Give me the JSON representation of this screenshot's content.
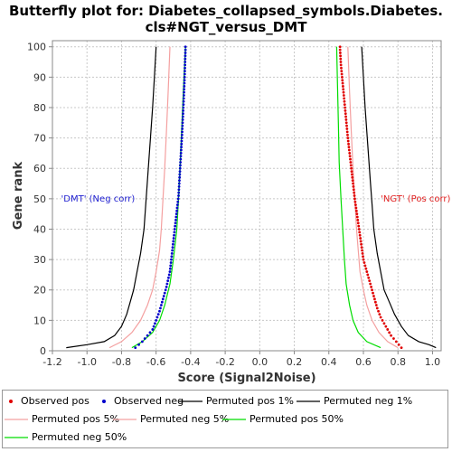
{
  "title_line1": "Butterfly plot for: Diabetes_collapsed_symbols.Diabetes.",
  "title_line2": "cls#NGT_versus_DMT",
  "chart_data": {
    "type": "line",
    "xlabel": "Score (Signal2Noise)",
    "ylabel": "Gene rank",
    "xlim": [
      -1.2,
      1.05
    ],
    "ylim": [
      0,
      102
    ],
    "x_ticks": [
      "-1.2",
      "-1.0",
      "-0.8",
      "-0.6",
      "-0.4",
      "-0.2",
      "0.0",
      "0.2",
      "0.4",
      "0.6",
      "0.8",
      "1.0"
    ],
    "y_ticks": [
      "0",
      "10",
      "20",
      "30",
      "40",
      "50",
      "60",
      "70",
      "80",
      "90",
      "100"
    ],
    "grid": true,
    "annotations": [
      {
        "text": "'DMT' (Neg corr)",
        "color": "#2020d0",
        "x": -1.15,
        "y": 49
      },
      {
        "text": "'NGT' (Pos corr)",
        "color": "#e02020",
        "x": 0.7,
        "y": 49
      }
    ],
    "series": [
      {
        "name": "Observed pos",
        "style": "dots",
        "color": "#e00000",
        "x": [
          0.82,
          0.79,
          0.76,
          0.73,
          0.7,
          0.68,
          0.66,
          0.64,
          0.62,
          0.6,
          0.59,
          0.58,
          0.57,
          0.56,
          0.55,
          0.54,
          0.53,
          0.52,
          0.51,
          0.5,
          0.49,
          0.48,
          0.47,
          0.465
        ],
        "y": [
          1,
          3,
          5,
          8,
          11,
          14,
          18,
          22,
          26,
          30,
          34,
          38,
          42,
          46,
          50,
          55,
          60,
          65,
          70,
          76,
          82,
          88,
          94,
          99
        ]
      },
      {
        "name": "Observed neg",
        "style": "dots",
        "color": "#0000cc",
        "x": [
          -0.72,
          -0.68,
          -0.65,
          -0.62,
          -0.6,
          -0.58,
          -0.56,
          -0.54,
          -0.52,
          -0.51,
          -0.5,
          -0.49,
          -0.48,
          -0.47,
          -0.465,
          -0.46,
          -0.455,
          -0.45,
          -0.445,
          -0.44,
          -0.435,
          -0.43
        ],
        "y": [
          1,
          3,
          5,
          7,
          10,
          13,
          17,
          21,
          26,
          31,
          36,
          41,
          46,
          51,
          56,
          61,
          66,
          71,
          77,
          83,
          90,
          99
        ]
      },
      {
        "name": "Permuted pos 1%",
        "style": "line",
        "color": "#000000",
        "x": [
          1.02,
          0.98,
          0.92,
          0.86,
          0.82,
          0.78,
          0.75,
          0.72,
          0.7,
          0.68,
          0.66,
          0.65,
          0.64,
          0.63,
          0.62,
          0.61,
          0.6,
          0.59
        ],
        "y": [
          1,
          2,
          3,
          5,
          8,
          12,
          16,
          20,
          26,
          32,
          40,
          48,
          56,
          64,
          72,
          80,
          90,
          100
        ]
      },
      {
        "name": "Permuted neg 1%",
        "style": "line",
        "color": "#000000",
        "x": [
          -1.12,
          -1.0,
          -0.9,
          -0.84,
          -0.8,
          -0.77,
          -0.75,
          -0.73,
          -0.71,
          -0.69,
          -0.67,
          -0.66,
          -0.65,
          -0.64,
          -0.63,
          -0.62,
          -0.61,
          -0.6
        ],
        "y": [
          1,
          2,
          3,
          5,
          8,
          12,
          16,
          20,
          26,
          32,
          40,
          48,
          56,
          64,
          72,
          80,
          90,
          100
        ]
      },
      {
        "name": "Permuted pos 5%",
        "style": "line",
        "color": "#f4a0a0",
        "x": [
          0.8,
          0.74,
          0.69,
          0.65,
          0.62,
          0.6,
          0.58,
          0.57,
          0.56,
          0.55,
          0.54,
          0.53,
          0.52,
          0.51
        ],
        "y": [
          1,
          3,
          6,
          10,
          15,
          20,
          26,
          33,
          40,
          50,
          60,
          72,
          85,
          100
        ]
      },
      {
        "name": "Permuted neg 5%",
        "style": "line",
        "color": "#f4a0a0",
        "x": [
          -0.87,
          -0.8,
          -0.74,
          -0.69,
          -0.65,
          -0.62,
          -0.6,
          -0.58,
          -0.57,
          -0.56,
          -0.55,
          -0.54,
          -0.53,
          -0.52
        ],
        "y": [
          1,
          3,
          6,
          10,
          15,
          20,
          26,
          33,
          40,
          50,
          60,
          72,
          85,
          100
        ]
      },
      {
        "name": "Permuted pos 50%",
        "style": "line",
        "color": "#00dd00",
        "x": [
          0.7,
          0.62,
          0.57,
          0.54,
          0.52,
          0.5,
          0.49,
          0.48,
          0.47,
          0.46,
          0.455,
          0.45,
          0.445
        ],
        "y": [
          1,
          3,
          6,
          10,
          15,
          22,
          30,
          40,
          50,
          62,
          75,
          88,
          100
        ]
      },
      {
        "name": "Permuted neg 50%",
        "style": "line",
        "color": "#00dd00",
        "x": [
          -0.74,
          -0.68,
          -0.62,
          -0.58,
          -0.55,
          -0.52,
          -0.5,
          -0.48,
          -0.47,
          -0.46,
          -0.45,
          -0.44,
          -0.43
        ],
        "y": [
          1,
          3,
          6,
          10,
          15,
          22,
          30,
          40,
          50,
          62,
          75,
          88,
          100
        ]
      }
    ]
  },
  "legend": [
    {
      "label": "Observed pos",
      "style": "dot",
      "color": "#e00000"
    },
    {
      "label": "Observed neg",
      "style": "dot",
      "color": "#0000cc"
    },
    {
      "label": "Permuted pos 1%",
      "style": "line",
      "color": "#000000"
    },
    {
      "label": "Permuted neg 1%",
      "style": "line",
      "color": "#000000"
    },
    {
      "label": "Permuted pos 5%",
      "style": "line",
      "color": "#f4a0a0"
    },
    {
      "label": "Permuted neg 5%",
      "style": "line",
      "color": "#f4a0a0"
    },
    {
      "label": "Permuted pos 50%",
      "style": "line",
      "color": "#00dd00"
    },
    {
      "label": "Permuted neg 50%",
      "style": "line",
      "color": "#00dd00"
    }
  ]
}
